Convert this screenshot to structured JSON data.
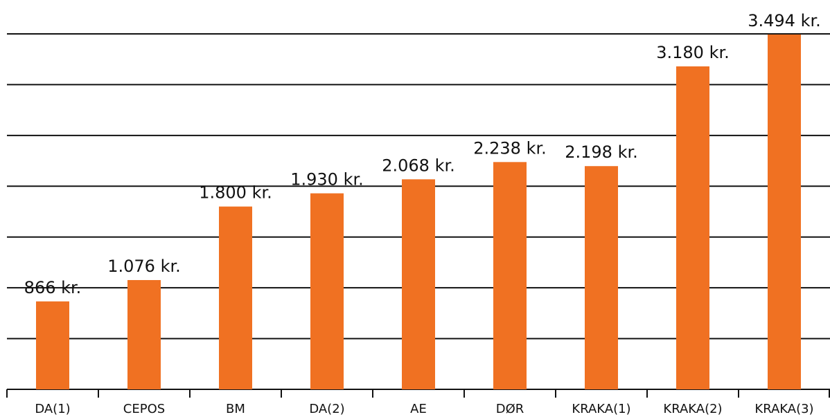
{
  "chart_data": {
    "type": "bar",
    "categories": [
      "DA(1)",
      "CEPOS",
      "BM",
      "DA(2)",
      "AE",
      "DØR",
      "KRAKA(1)",
      "KRAKA(2)",
      "KRAKA(3)"
    ],
    "values": [
      866,
      1076,
      1800,
      1930,
      2068,
      2238,
      2198,
      3180,
      3494
    ],
    "value_labels": [
      "866 kr.",
      "1.076 kr.",
      "1.800 kr.",
      "1.930 kr.",
      "2.068 kr.",
      "2.238 kr.",
      "2.198 kr.",
      "3.180 kr.",
      "3.494 kr."
    ],
    "color": "#f07122",
    "ylim": [
      0,
      3500
    ],
    "yticks": [
      0,
      500,
      1000,
      1500,
      2000,
      2500,
      3000,
      3500
    ],
    "grid": true
  }
}
